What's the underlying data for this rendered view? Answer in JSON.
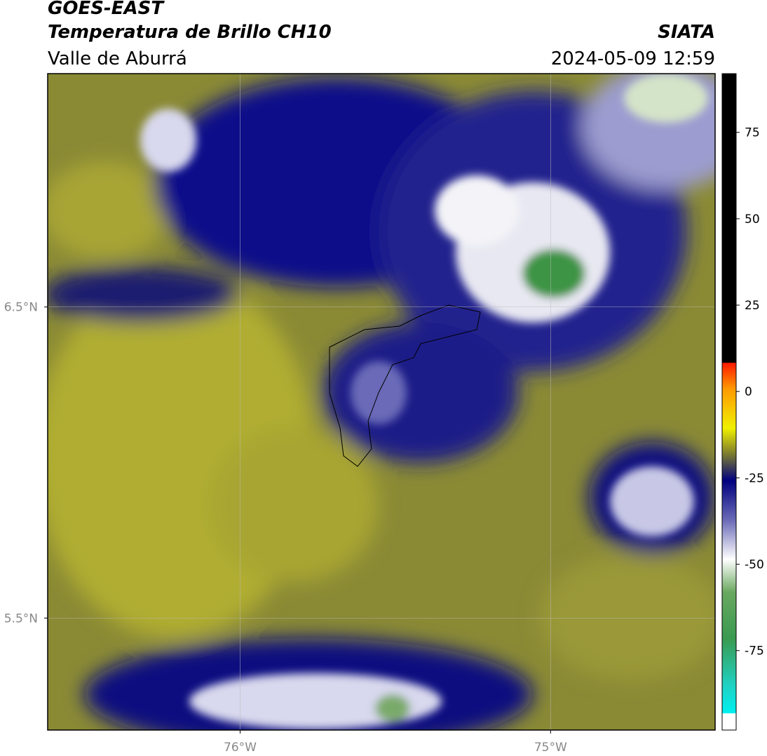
{
  "header": {
    "title": "GOES-EAST",
    "subtitle": "Temperatura de Brillo CH10",
    "region": "Valle de Aburrá",
    "source": "SIATA",
    "datetime": "2024-05-09 12:59"
  },
  "map": {
    "xlim": [
      -76.62,
      -74.47
    ],
    "ylim": [
      5.14,
      7.25
    ],
    "xticks": [
      {
        "value": -76,
        "label": "76°W"
      },
      {
        "value": -75,
        "label": "75°W"
      }
    ],
    "yticks": [
      {
        "value": 6.5,
        "label": "6.5°N"
      },
      {
        "value": 5.5,
        "label": "5.5°N"
      }
    ],
    "grid": true
  },
  "colorbar": {
    "lim": [
      -98,
      92
    ],
    "ticks": [
      75,
      50,
      25,
      0,
      -25,
      -50,
      -75
    ]
  }
}
